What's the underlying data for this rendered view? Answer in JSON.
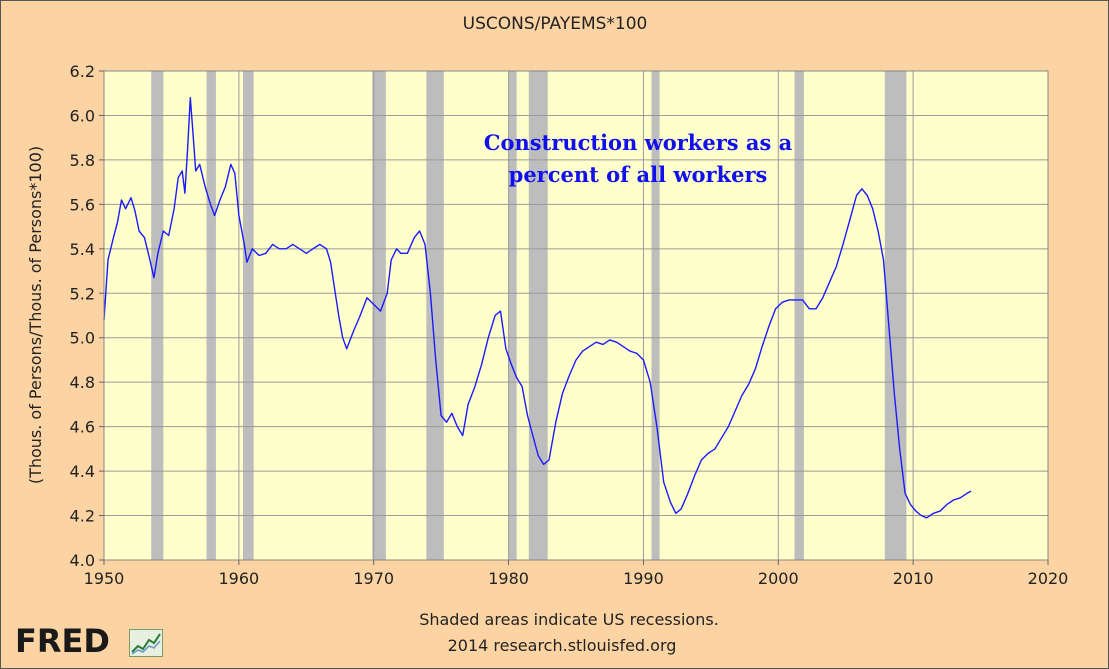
{
  "chart_data": {
    "type": "line",
    "title": "USCONS/PAYEMS*100",
    "ylabel": "(Thous. of Persons/Thous. of Persons*100)",
    "xlabel": "",
    "annotation_lines": [
      "Construction workers as a",
      "percent of all workers"
    ],
    "xlim": [
      1950,
      2020
    ],
    "ylim": [
      4.0,
      6.2
    ],
    "x_ticks": [
      "1950",
      "1960",
      "1970",
      "1980",
      "1990",
      "2000",
      "2010",
      "2020"
    ],
    "y_ticks": [
      "4.0",
      "4.2",
      "4.4",
      "4.6",
      "4.8",
      "5.0",
      "5.2",
      "5.4",
      "5.6",
      "5.8",
      "6.0",
      "6.2"
    ],
    "grid": true,
    "line_color": "#1a1aff",
    "recession_color": "#bdbdbd",
    "recessions": [
      [
        1953.5,
        1954.4
      ],
      [
        1957.6,
        1958.3
      ],
      [
        1960.3,
        1961.1
      ],
      [
        1969.9,
        1970.9
      ],
      [
        1973.9,
        1975.2
      ],
      [
        1980.0,
        1980.6
      ],
      [
        1981.5,
        1982.9
      ],
      [
        1990.6,
        1991.2
      ],
      [
        2001.2,
        2001.9
      ],
      [
        2007.9,
        2009.5
      ]
    ],
    "series": [
      {
        "x": [
          1950.0,
          1950.3,
          1950.7,
          1951.0,
          1951.3,
          1951.6,
          1952.0,
          1952.3,
          1952.6,
          1953.0,
          1953.4,
          1953.7,
          1954.0,
          1954.4,
          1954.8,
          1955.2,
          1955.5,
          1955.8,
          1956.0,
          1956.2,
          1956.4,
          1956.6,
          1956.8,
          1957.1,
          1957.5,
          1957.9,
          1958.2,
          1958.6,
          1959.0,
          1959.4,
          1959.7,
          1960.0,
          1960.4,
          1960.6,
          1961.0,
          1961.5,
          1962.0,
          1962.5,
          1963.0,
          1963.5,
          1964.0,
          1964.5,
          1965.0,
          1965.5,
          1966.0,
          1966.5,
          1966.8,
          1967.1,
          1967.4,
          1967.7,
          1968.0,
          1968.5,
          1969.0,
          1969.5,
          1970.0,
          1970.5,
          1971.0,
          1971.3,
          1971.7,
          1972.0,
          1972.5,
          1973.0,
          1973.4,
          1973.8,
          1974.2,
          1974.6,
          1975.0,
          1975.4,
          1975.8,
          1976.2,
          1976.6,
          1977.0,
          1977.5,
          1978.0,
          1978.5,
          1979.0,
          1979.4,
          1979.8,
          1980.2,
          1980.6,
          1981.0,
          1981.4,
          1981.8,
          1982.2,
          1982.6,
          1983.0,
          1983.5,
          1984.0,
          1984.5,
          1985.0,
          1985.5,
          1986.0,
          1986.5,
          1987.0,
          1987.5,
          1988.0,
          1988.5,
          1989.0,
          1989.5,
          1990.0,
          1990.5,
          1991.0,
          1991.5,
          1992.0,
          1992.4,
          1992.8,
          1993.3,
          1993.8,
          1994.3,
          1994.8,
          1995.3,
          1995.8,
          1996.3,
          1996.8,
          1997.3,
          1997.8,
          1998.3,
          1998.8,
          1999.3,
          1999.8,
          2000.3,
          2000.8,
          2001.3,
          2001.8,
          2002.3,
          2002.8,
          2003.3,
          2003.8,
          2004.3,
          2004.8,
          2005.3,
          2005.8,
          2006.2,
          2006.6,
          2007.0,
          2007.4,
          2007.8,
          2008.2,
          2008.6,
          2009.0,
          2009.4,
          2009.8,
          2010.2,
          2010.6,
          2011.0,
          2011.5,
          2012.0,
          2012.5,
          2013.0,
          2013.5,
          2014.0,
          2014.3
        ],
        "y": [
          5.08,
          5.35,
          5.45,
          5.52,
          5.62,
          5.58,
          5.63,
          5.57,
          5.48,
          5.45,
          5.35,
          5.27,
          5.38,
          5.48,
          5.46,
          5.58,
          5.72,
          5.75,
          5.65,
          5.85,
          6.08,
          5.92,
          5.75,
          5.78,
          5.68,
          5.6,
          5.55,
          5.62,
          5.68,
          5.78,
          5.74,
          5.55,
          5.42,
          5.34,
          5.4,
          5.37,
          5.38,
          5.42,
          5.4,
          5.4,
          5.42,
          5.4,
          5.38,
          5.4,
          5.42,
          5.4,
          5.34,
          5.22,
          5.1,
          5.0,
          4.95,
          5.03,
          5.1,
          5.18,
          5.15,
          5.12,
          5.2,
          5.35,
          5.4,
          5.38,
          5.38,
          5.45,
          5.48,
          5.42,
          5.2,
          4.9,
          4.65,
          4.62,
          4.66,
          4.6,
          4.56,
          4.7,
          4.78,
          4.88,
          5.0,
          5.1,
          5.12,
          4.95,
          4.88,
          4.82,
          4.78,
          4.65,
          4.56,
          4.47,
          4.43,
          4.45,
          4.62,
          4.75,
          4.83,
          4.9,
          4.94,
          4.96,
          4.98,
          4.97,
          4.99,
          4.98,
          4.96,
          4.94,
          4.93,
          4.9,
          4.8,
          4.6,
          4.35,
          4.26,
          4.21,
          4.23,
          4.3,
          4.38,
          4.45,
          4.48,
          4.5,
          4.55,
          4.6,
          4.67,
          4.74,
          4.79,
          4.86,
          4.96,
          5.05,
          5.13,
          5.16,
          5.17,
          5.17,
          5.17,
          5.13,
          5.13,
          5.18,
          5.25,
          5.32,
          5.42,
          5.53,
          5.64,
          5.67,
          5.64,
          5.58,
          5.48,
          5.35,
          5.05,
          4.75,
          4.5,
          4.3,
          4.25,
          4.22,
          4.2,
          4.19,
          4.21,
          4.22,
          4.25,
          4.27,
          4.28,
          4.3,
          4.31
        ]
      }
    ]
  },
  "footer": {
    "note": "Shaded areas indicate US recessions.",
    "source": "2014 research.stlouisfed.org"
  },
  "brand": {
    "logo_text": "FRED",
    "logo_icon": "fred-graph-icon"
  }
}
